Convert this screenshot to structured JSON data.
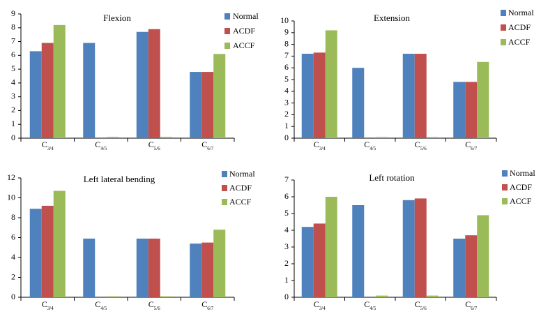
{
  "colors": {
    "Normal": "#4F81BD",
    "ACDF": "#C0504D",
    "ACCF": "#9BBB59"
  },
  "chart_data": [
    {
      "type": "bar",
      "title": "Flexion",
      "categories": [
        {
          "base": "C",
          "sub": "3/4"
        },
        {
          "base": "C",
          "sub": "4/5"
        },
        {
          "base": "C",
          "sub": "5/6"
        },
        {
          "base": "C",
          "sub": "6/7"
        }
      ],
      "series": [
        {
          "name": "Normal",
          "values": [
            6.3,
            6.9,
            7.7,
            4.8
          ]
        },
        {
          "name": "ACDF",
          "values": [
            6.9,
            0,
            7.9,
            4.8
          ]
        },
        {
          "name": "ACCF",
          "values": [
            8.2,
            0.1,
            0.1,
            6.1
          ]
        }
      ],
      "ylim": [
        0,
        9
      ],
      "yticks": [
        0,
        1,
        2,
        3,
        4,
        5,
        6,
        7,
        8,
        9
      ],
      "legend": "top-right",
      "grid": false
    },
    {
      "type": "bar",
      "title": "Extension",
      "categories": [
        {
          "base": "C",
          "sub": "3/4"
        },
        {
          "base": "C",
          "sub": "4/5"
        },
        {
          "base": "C",
          "sub": "5/6"
        },
        {
          "base": "C",
          "sub": "6/7"
        }
      ],
      "series": [
        {
          "name": "Normal",
          "values": [
            7.2,
            6.0,
            7.2,
            4.8
          ]
        },
        {
          "name": "ACDF",
          "values": [
            7.3,
            0,
            7.2,
            4.8
          ]
        },
        {
          "name": "ACCF",
          "values": [
            9.2,
            0.1,
            0.1,
            6.5
          ]
        }
      ],
      "ylim": [
        0,
        10
      ],
      "yticks": [
        0,
        1,
        2,
        3,
        4,
        5,
        6,
        7,
        8,
        9,
        10
      ],
      "legend": "top-right",
      "grid": false
    },
    {
      "type": "bar",
      "title": "Left lateral bending",
      "categories": [
        {
          "base": "C",
          "sub": "3/4"
        },
        {
          "base": "C",
          "sub": "4/5"
        },
        {
          "base": "C",
          "sub": "5/6"
        },
        {
          "base": "C",
          "sub": "6/7"
        }
      ],
      "series": [
        {
          "name": "Normal",
          "values": [
            8.9,
            5.9,
            5.9,
            5.4
          ]
        },
        {
          "name": "ACDF",
          "values": [
            9.2,
            0,
            5.9,
            5.5
          ]
        },
        {
          "name": "ACCF",
          "values": [
            10.7,
            0.1,
            0.1,
            6.8
          ]
        }
      ],
      "ylim": [
        0,
        12
      ],
      "yticks": [
        0,
        2,
        4,
        6,
        8,
        10,
        12
      ],
      "legend": "top-right",
      "grid": false
    },
    {
      "type": "bar",
      "title": "Left rotation",
      "categories": [
        {
          "base": "C",
          "sub": "3/4"
        },
        {
          "base": "C",
          "sub": "4/5"
        },
        {
          "base": "C",
          "sub": "5/6"
        },
        {
          "base": "C",
          "sub": "6/7"
        }
      ],
      "series": [
        {
          "name": "Normal",
          "values": [
            4.2,
            5.5,
            5.8,
            3.5
          ]
        },
        {
          "name": "ACDF",
          "values": [
            4.4,
            0,
            5.9,
            3.7
          ]
        },
        {
          "name": "ACCF",
          "values": [
            6.0,
            0.1,
            0.1,
            4.9
          ]
        }
      ],
      "ylim": [
        0,
        7
      ],
      "yticks": [
        0,
        1,
        2,
        3,
        4,
        5,
        6,
        7
      ],
      "legend": "top-right",
      "grid": false
    }
  ]
}
